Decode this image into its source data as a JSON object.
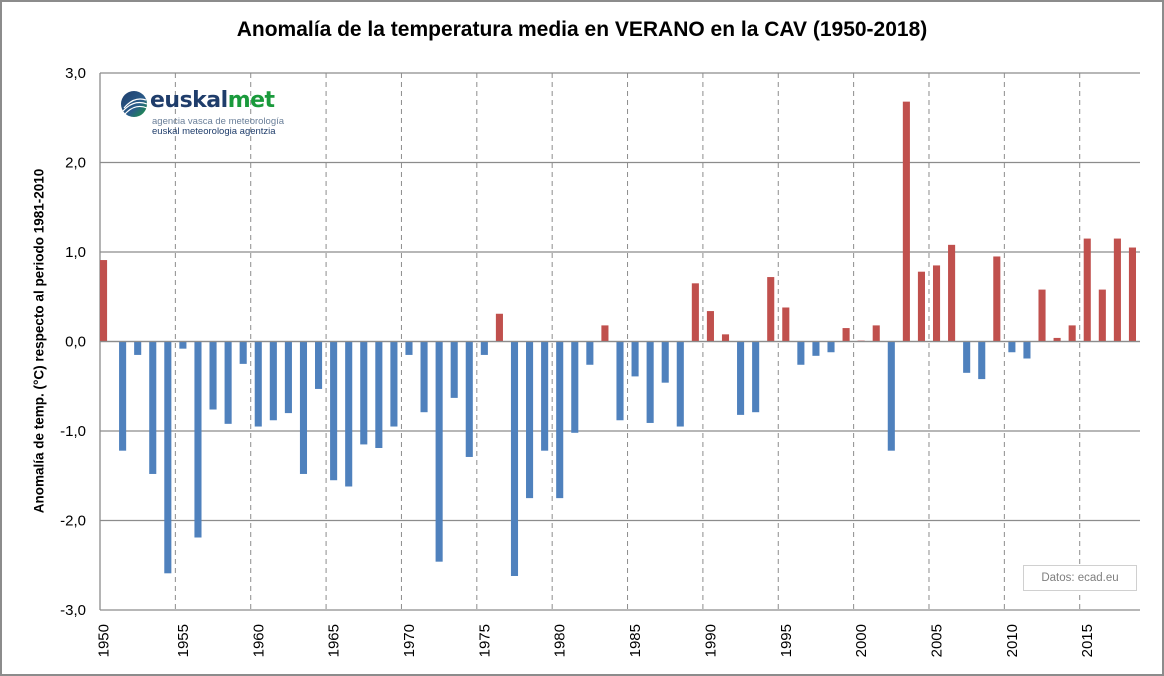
{
  "chart_data": {
    "type": "bar",
    "title": "Anomalía de la temperatura media en VERANO en la CAV (1950-2018)",
    "xlabel": "",
    "ylabel": "Anomalía de temp. (°C) respecto al periodo 1981-2010",
    "ylim": [
      -3.0,
      3.0
    ],
    "yticks": [
      3.0,
      2.0,
      1.0,
      0.0,
      -1.0,
      -2.0,
      -3.0
    ],
    "ytick_labels": [
      "3,0",
      "2,0",
      "1,0",
      "0,0",
      "-1,0",
      "-2,0",
      "-3,0"
    ],
    "xtick_labels": [
      "1950",
      "1955",
      "1960",
      "1965",
      "1970",
      "1975",
      "1980",
      "1985",
      "1990",
      "1995",
      "2000",
      "2005",
      "2010",
      "2015"
    ],
    "grid": "horizontal solid at y ticks, vertical dashed every 5 years",
    "legend": "none",
    "colors": {
      "positive": "#c0504d",
      "negative": "#4f81bd"
    },
    "categories": [
      1950,
      1951,
      1952,
      1953,
      1954,
      1955,
      1956,
      1957,
      1958,
      1959,
      1960,
      1961,
      1962,
      1963,
      1964,
      1965,
      1966,
      1967,
      1968,
      1969,
      1970,
      1971,
      1972,
      1973,
      1974,
      1975,
      1976,
      1977,
      1978,
      1979,
      1980,
      1981,
      1982,
      1983,
      1984,
      1985,
      1986,
      1987,
      1988,
      1989,
      1990,
      1991,
      1992,
      1993,
      1994,
      1995,
      1996,
      1997,
      1998,
      1999,
      2000,
      2001,
      2002,
      2003,
      2004,
      2005,
      2006,
      2007,
      2008,
      2009,
      2010,
      2011,
      2012,
      2013,
      2014,
      2015,
      2016,
      2017,
      2018
    ],
    "values": [
      0.91,
      -1.22,
      -0.15,
      -1.48,
      -2.59,
      -0.08,
      -2.19,
      -0.76,
      -0.92,
      -0.25,
      -0.95,
      -0.88,
      -0.8,
      -1.48,
      -0.53,
      -1.55,
      -1.62,
      -1.15,
      -1.19,
      -0.95,
      -0.15,
      -0.79,
      -2.46,
      -0.63,
      -1.29,
      -0.15,
      0.31,
      -2.62,
      -1.75,
      -1.22,
      -1.75,
      -1.02,
      -0.26,
      0.18,
      -0.88,
      -0.39,
      -0.91,
      -0.46,
      -0.95,
      0.65,
      0.34,
      0.08,
      -0.82,
      -0.79,
      0.72,
      0.38,
      -0.26,
      -0.16,
      -0.12,
      0.15,
      0.01,
      0.18,
      -1.22,
      2.68,
      0.78,
      0.85,
      1.08,
      -0.35,
      -0.42,
      0.95,
      -0.12,
      -0.19,
      0.58,
      0.04,
      0.18,
      1.15,
      0.58,
      1.15,
      1.05
    ]
  },
  "logo": {
    "word_part1": "euskal",
    "word_part2": "met",
    "subtitle_es": "agencia vasca de meteorología",
    "subtitle_eu": "euskal meteorologia agentzia"
  },
  "credit": "Datos: ecad.eu"
}
